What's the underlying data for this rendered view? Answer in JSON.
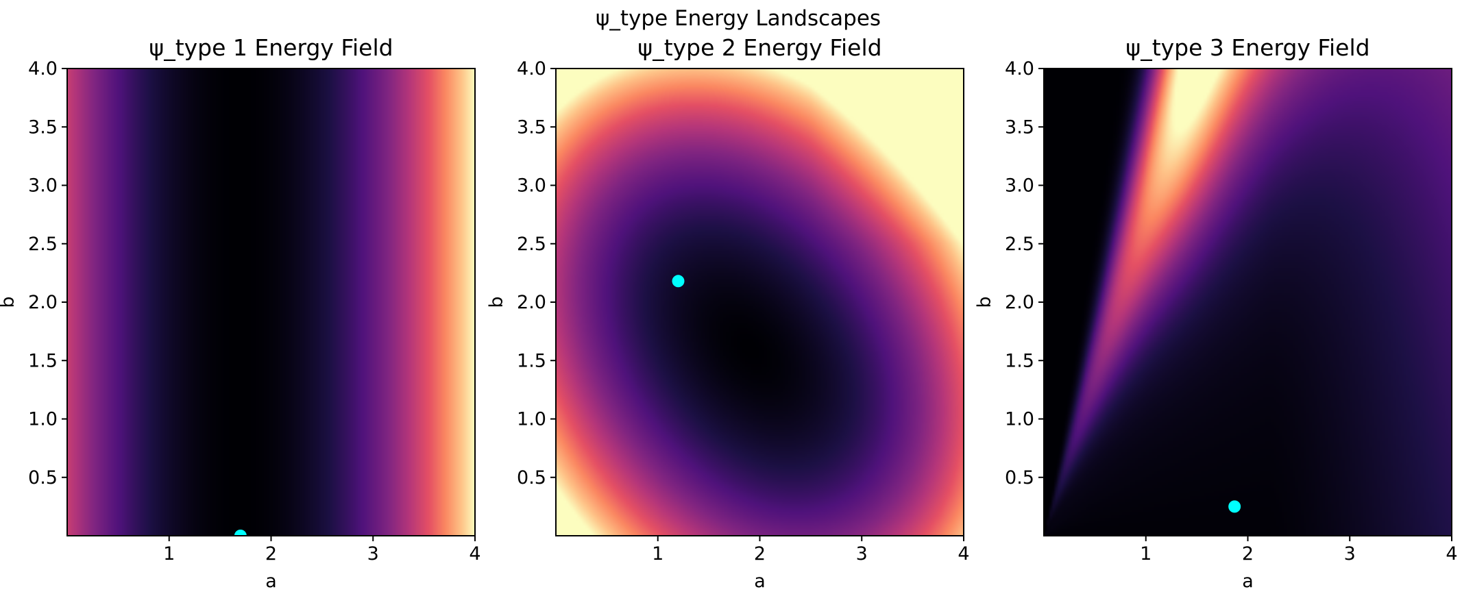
{
  "figure": {
    "suptitle": "ψ_type Energy Landscapes"
  },
  "colors": {
    "minimum_marker": "#00ffff",
    "colormap": "magma",
    "axes_frame": "#000000"
  },
  "chart_data": [
    {
      "type": "heatmap",
      "title": "ψ_type 1 Energy Field",
      "xlabel": "a",
      "ylabel": "b",
      "xlim": [
        0,
        4
      ],
      "ylim": [
        0,
        4
      ],
      "xticks": [
        "1",
        "2",
        "3",
        "4"
      ],
      "yticks": [
        "0.5",
        "1.0",
        "1.5",
        "2.0",
        "2.5",
        "3.0",
        "3.5",
        "4.0"
      ],
      "colormap": "magma",
      "grid": false,
      "field": "energy low (dark) in a vertical band centred near a = 1.7, rising toward a = 0 and strongly toward a = 4; independent of b",
      "minimum": {
        "a": 1.7,
        "b": 0.0
      }
    },
    {
      "type": "heatmap",
      "title": "ψ_type 2 Energy Field",
      "xlabel": "a",
      "ylabel": "b",
      "xlim": [
        0,
        4
      ],
      "ylim": [
        0,
        4
      ],
      "xticks": [
        "1",
        "2",
        "3",
        "4"
      ],
      "yticks": [
        "0.5",
        "1.0",
        "1.5",
        "2.0",
        "2.5",
        "3.0",
        "3.5",
        "4.0"
      ],
      "colormap": "magma",
      "grid": false,
      "field": "dark basin around a ≈ 1.2–2.3, b ≈ 1.2–2.3; brightest toward corner a = 4, b = 4",
      "minimum": {
        "a": 1.2,
        "b": 2.18
      }
    },
    {
      "type": "heatmap",
      "title": "ψ_type 3 Energy Field",
      "xlabel": "a",
      "ylabel": "b",
      "xlim": [
        0,
        4
      ],
      "ylim": [
        0,
        4
      ],
      "xticks": [
        "1",
        "2",
        "3",
        "4"
      ],
      "yticks": [
        "0.5",
        "1.0",
        "1.5",
        "2.0",
        "2.5",
        "3.0",
        "3.5",
        "4.0"
      ],
      "colormap": "magma",
      "grid": false,
      "field": "bright ridge along b ≈ 2.6·a from origin to top near a ≈ 1.5; dark region below the diagonal, darkest near a ≈ 2, b ≈ 0.3",
      "minimum": {
        "a": 1.87,
        "b": 0.25
      }
    }
  ]
}
